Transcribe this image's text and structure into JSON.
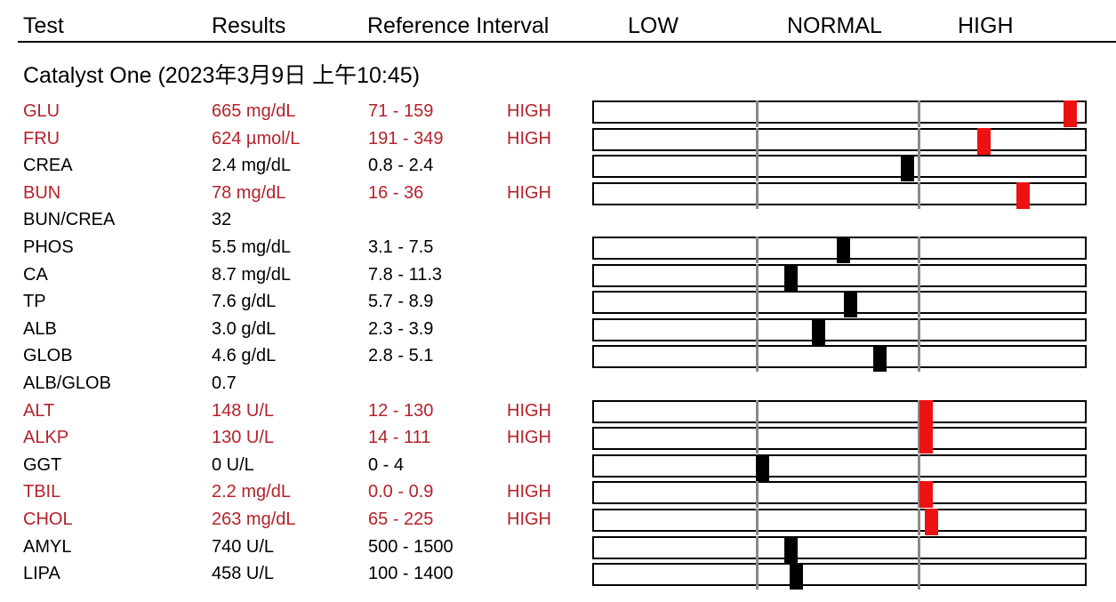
{
  "header": {
    "test": "Test",
    "results": "Results",
    "reference_interval": "Reference Interval",
    "low": "LOW",
    "normal": "NORMAL",
    "high": "HIGH"
  },
  "section_title": "Catalyst One (2023年3月9日 上午10:45)",
  "colors": {
    "high_text": "#b5222b",
    "high_marker": "#ee1111",
    "normal_marker": "#000000",
    "divider": "#8a8a8a"
  },
  "rows": [
    {
      "test": "GLU",
      "result": "665 mg/dL",
      "ref": "71 - 159",
      "flag": "HIGH",
      "status": "high",
      "marker_pct": 96.9
    },
    {
      "test": "FRU",
      "result": "624 µmol/L",
      "ref": "191 - 349",
      "flag": "HIGH",
      "status": "high",
      "marker_pct": 79.3
    },
    {
      "test": "CREA",
      "result": "2.4 mg/dL",
      "ref": "0.8 - 2.4",
      "flag": "",
      "status": "normal",
      "marker_pct": 63.8
    },
    {
      "test": "BUN",
      "result": "78 mg/dL",
      "ref": "16 - 36",
      "flag": "HIGH",
      "status": "high",
      "marker_pct": 87.3
    },
    {
      "test": "BUN/CREA",
      "result": "32",
      "ref": "",
      "flag": "",
      "status": "none",
      "marker_pct": null
    },
    {
      "test": "PHOS",
      "result": "5.5 mg/dL",
      "ref": "3.1 - 7.5",
      "flag": "",
      "status": "normal",
      "marker_pct": 50.8
    },
    {
      "test": "CA",
      "result": "8.7 mg/dL",
      "ref": "7.8 - 11.3",
      "flag": "",
      "status": "normal",
      "marker_pct": 40.0
    },
    {
      "test": "TP",
      "result": "7.6 g/dL",
      "ref": "5.7 - 8.9",
      "flag": "",
      "status": "normal",
      "marker_pct": 52.2
    },
    {
      "test": "ALB",
      "result": "3.0 g/dL",
      "ref": "2.3 - 3.9",
      "flag": "",
      "status": "normal",
      "marker_pct": 45.7
    },
    {
      "test": "GLOB",
      "result": "4.6 g/dL",
      "ref": "2.8 - 5.1",
      "flag": "",
      "status": "normal",
      "marker_pct": 58.1
    },
    {
      "test": "ALB/GLOB",
      "result": "0.7",
      "ref": "",
      "flag": "",
      "status": "none",
      "marker_pct": null
    },
    {
      "test": "ALT",
      "result": "148 U/L",
      "ref": "12 - 130",
      "flag": "HIGH",
      "status": "high",
      "marker_pct": 67.5
    },
    {
      "test": "ALKP",
      "result": "130 U/L",
      "ref": "14 - 111",
      "flag": "HIGH",
      "status": "high",
      "marker_pct": 67.5
    },
    {
      "test": "GGT",
      "result": "0 U/L",
      "ref": "0 - 4",
      "flag": "",
      "status": "normal",
      "marker_pct": 34.3
    },
    {
      "test": "TBIL",
      "result": "2.2 mg/dL",
      "ref": "0.0 - 0.9",
      "flag": "HIGH",
      "status": "high",
      "marker_pct": 67.5
    },
    {
      "test": "CHOL",
      "result": "263 mg/dL",
      "ref": "65 - 225",
      "flag": "HIGH",
      "status": "high",
      "marker_pct": 68.7
    },
    {
      "test": "AMYL",
      "result": "740 U/L",
      "ref": "500 - 1500",
      "flag": "",
      "status": "normal",
      "marker_pct": 40.1
    },
    {
      "test": "LIPA",
      "result": "458 U/L",
      "ref": "100 - 1400",
      "flag": "",
      "status": "normal",
      "marker_pct": 41.2
    }
  ]
}
